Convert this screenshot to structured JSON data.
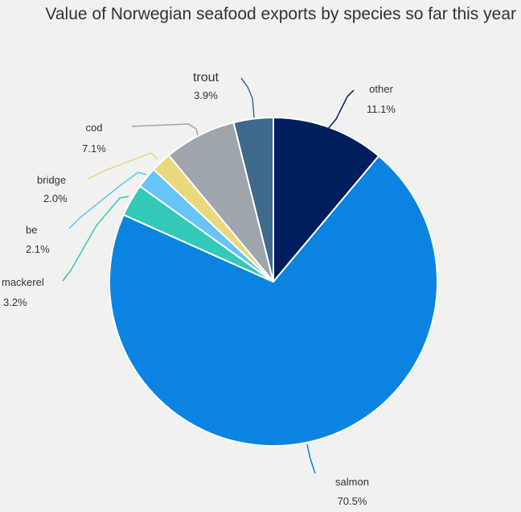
{
  "chart_data": {
    "type": "pie",
    "title": "Value of Norwegian seafood exports by species so far this year",
    "slices": [
      {
        "label": "other",
        "value": 11.1,
        "display": "11.1%",
        "color": "#001e5e"
      },
      {
        "label": "salmon",
        "value": 70.5,
        "display": "70.5%",
        "color": "#0a84e0"
      },
      {
        "label": "mackerel",
        "value": 3.2,
        "display": "3.2%",
        "color": "#33c9b8"
      },
      {
        "label": "be",
        "value": 2.1,
        "display": "2.1%",
        "color": "#66c4f7"
      },
      {
        "label": "bridge",
        "value": 2.0,
        "display": "2.0%",
        "color": "#e8d97c"
      },
      {
        "label": "cod",
        "value": 7.1,
        "display": "7.1%",
        "color": "#9ea5ad"
      },
      {
        "label": "trout",
        "value": 3.9,
        "display": "3.9%",
        "color": "#3f6a8c"
      }
    ],
    "start_angle": "12 o'clock, clockwise",
    "legend": "none (callout labels)"
  }
}
